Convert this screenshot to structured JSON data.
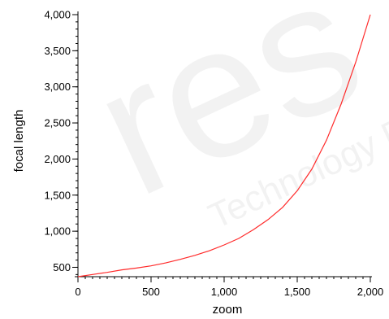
{
  "watermark": {
    "text_large": "res",
    "text_small": "Technology Publications"
  },
  "chart_data": {
    "type": "line",
    "title": "",
    "xlabel": "zoom",
    "ylabel": "focal length",
    "xlim": [
      0,
      2000
    ],
    "ylim": [
      370,
      4000
    ],
    "x_ticks": [
      {
        "value": 0,
        "label": "0"
      },
      {
        "value": 500,
        "label": "500"
      },
      {
        "value": 1000,
        "label": "1,000"
      },
      {
        "value": 1500,
        "label": "1,500"
      },
      {
        "value": 2000,
        "label": "2,000"
      }
    ],
    "y_ticks": [
      {
        "value": 500,
        "label": "500"
      },
      {
        "value": 1000,
        "label": "1,000"
      },
      {
        "value": 1500,
        "label": "1,500"
      },
      {
        "value": 2000,
        "label": "2,000"
      },
      {
        "value": 2500,
        "label": "2,500"
      },
      {
        "value": 3000,
        "label": "3,000"
      },
      {
        "value": 3500,
        "label": "3,500"
      },
      {
        "value": 4000,
        "label": "4,000"
      }
    ],
    "series": [
      {
        "color": "#ff2a2a",
        "x": [
          0,
          100,
          200,
          300,
          400,
          500,
          600,
          700,
          800,
          900,
          1000,
          1100,
          1200,
          1300,
          1400,
          1500,
          1600,
          1700,
          1800,
          1900,
          2000
        ],
        "y": [
          370,
          400,
          430,
          465,
          490,
          520,
          560,
          610,
          665,
          730,
          810,
          900,
          1020,
          1160,
          1330,
          1560,
          1860,
          2260,
          2760,
          3340,
          4000
        ]
      }
    ],
    "grid": false,
    "legend": "none"
  }
}
